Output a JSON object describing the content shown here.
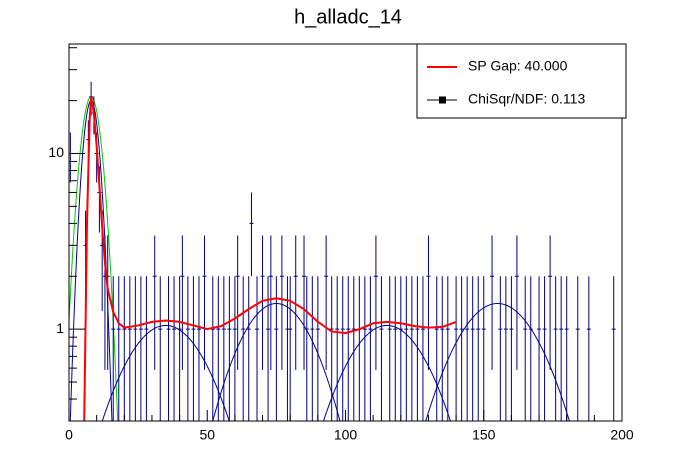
{
  "chart_data": {
    "type": "errorbar",
    "title": "h_alladc_14",
    "x": [
      0.5,
      6,
      7,
      8,
      9,
      10,
      11,
      12,
      13,
      14,
      16,
      18,
      20,
      22,
      24,
      26,
      28,
      31,
      33,
      36,
      38,
      40,
      41,
      43,
      45,
      47,
      49,
      52,
      54,
      56,
      58,
      60,
      61,
      63,
      65,
      66,
      68,
      70,
      72,
      73,
      75,
      77,
      79,
      80,
      82,
      85,
      86,
      88,
      90,
      93,
      95,
      97,
      99,
      101,
      103,
      105,
      107,
      109,
      111,
      113,
      116,
      118,
      120,
      122,
      124,
      126,
      128,
      130,
      133,
      135,
      137,
      140,
      142,
      144,
      146,
      148,
      150,
      153,
      156,
      158,
      160,
      162,
      165,
      167,
      170,
      172,
      174,
      176,
      178,
      180,
      184,
      188,
      197
    ],
    "values": [
      10,
      3,
      12,
      21,
      17,
      10,
      6,
      3,
      2,
      2,
      1,
      1,
      1,
      1,
      1,
      1,
      1,
      2,
      1,
      1,
      1,
      1,
      2,
      1,
      1,
      1,
      2,
      1,
      1,
      1,
      1,
      1,
      2,
      1,
      1,
      4,
      1,
      2,
      1,
      2,
      1,
      2,
      1,
      1,
      2,
      2,
      1,
      1,
      1,
      2,
      1,
      1,
      1,
      1,
      1,
      1,
      1,
      1,
      2,
      1,
      1,
      1,
      1,
      1,
      1,
      1,
      1,
      2,
      1,
      1,
      1,
      1,
      1,
      1,
      1,
      1,
      1,
      2,
      1,
      1,
      1,
      2,
      1,
      1,
      1,
      1,
      2,
      1,
      1,
      1,
      1,
      1,
      1
    ],
    "errors": [
      3.162,
      1.732,
      3.464,
      4.583,
      4.123,
      3.162,
      2.449,
      1.732,
      1.414,
      1.414,
      1,
      1,
      1,
      1,
      1,
      1,
      1,
      1.414,
      1,
      1,
      1,
      1,
      1.414,
      1,
      1,
      1,
      1.414,
      1,
      1,
      1,
      1,
      1,
      1.414,
      1,
      1,
      2,
      1,
      1.414,
      1,
      1.414,
      1,
      1.414,
      1,
      1,
      1.414,
      1.414,
      1,
      1,
      1,
      1.414,
      1,
      1,
      1,
      1,
      1,
      1,
      1,
      1,
      1.414,
      1,
      1,
      1,
      1,
      1,
      1,
      1,
      1,
      1.414,
      1,
      1,
      1,
      1,
      1,
      1,
      1,
      1,
      1,
      1.414,
      1,
      1,
      1,
      1.414,
      1,
      1,
      1,
      1,
      1.414,
      1,
      1,
      1,
      1,
      1,
      1
    ],
    "color": "#000080",
    "fit": {
      "color": "#ff0000",
      "x": [
        5.5,
        6.5,
        7.5,
        8,
        9,
        10,
        11,
        12,
        13,
        14,
        16,
        18,
        20,
        25,
        30,
        35,
        40,
        45,
        50,
        55,
        60,
        65,
        70,
        75,
        80,
        85,
        90,
        95,
        100,
        105,
        110,
        115,
        120,
        125,
        130,
        135,
        140
      ],
      "values": [
        0.3,
        4,
        16,
        21,
        17,
        11,
        6.5,
        3.8,
        2.4,
        1.7,
        1.25,
        1.08,
        1.02,
        1.05,
        1.1,
        1.12,
        1.1,
        1.05,
        1.0,
        1.04,
        1.15,
        1.3,
        1.45,
        1.5,
        1.45,
        1.3,
        1.1,
        0.97,
        0.95,
        1.0,
        1.08,
        1.1,
        1.08,
        1.04,
        1.02,
        1.03,
        1.1
      ]
    },
    "components": [
      {
        "mean": 8,
        "sigma": 3.3,
        "amplitude": 21,
        "color": "#00cc00"
      },
      {
        "mean": 8,
        "sigma": 2.6,
        "amplitude": 20,
        "color": "#000099"
      },
      {
        "mean": 35,
        "sigma": 14.5,
        "amplitude": 1.05,
        "color": "#000099"
      },
      {
        "mean": 75,
        "sigma": 13.1,
        "amplitude": 1.4,
        "color": "#000099"
      },
      {
        "mean": 115,
        "sigma": 14.5,
        "amplitude": 1.05,
        "color": "#000099"
      },
      {
        "mean": 155,
        "sigma": 14.8,
        "amplitude": 1.4,
        "color": "#000099"
      }
    ],
    "xlim": [
      0,
      200
    ],
    "ylim": [
      0.3,
      42
    ],
    "log_y": true,
    "xticks": [
      0,
      50,
      100,
      150,
      200
    ],
    "xminor_ticks": [
      10,
      20,
      30,
      40,
      60,
      70,
      80,
      90,
      110,
      120,
      130,
      140,
      160,
      170,
      180,
      190
    ],
    "yticks": [
      1,
      10
    ],
    "yminor_ticks": [
      0.3,
      0.4,
      0.5,
      0.6,
      0.7,
      0.8,
      0.9,
      2,
      3,
      4,
      5,
      6,
      7,
      8,
      9,
      20,
      30,
      40
    ],
    "legend": {
      "position": "top-right",
      "entries": [
        {
          "label": "SP Gap: 40.000",
          "color": "#ff0000",
          "style": "line"
        },
        {
          "label": "ChiSqr/NDF: 0.113",
          "color": "#000000",
          "style": "line-square"
        }
      ]
    }
  }
}
